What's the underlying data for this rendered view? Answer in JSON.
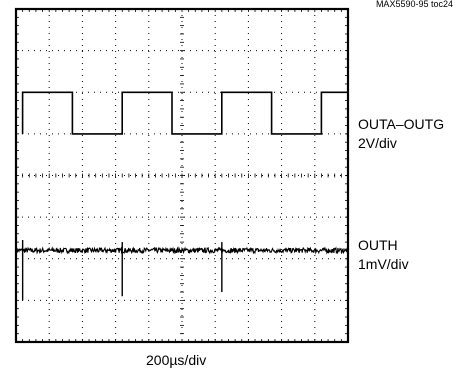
{
  "figure_id": "MAX5590-95 toc24",
  "chart_data": {
    "type": "line",
    "grid": true,
    "x_divisions": 10,
    "y_divisions": 8,
    "xlabel": "200µs/div",
    "series": [
      {
        "name": "OUTA–OUTG",
        "scale": "2V/div",
        "shape": "square",
        "period_div": 3.0,
        "duty": 0.5,
        "first_rise_div": 0.2,
        "high_level_div": 6.0,
        "low_level_div": 5.0
      },
      {
        "name": "OUTH",
        "scale": "1mV/div",
        "shape": "noise-with-spikes",
        "baseline_div": 2.2,
        "noise_amplitude_div": 0.06,
        "spikes": [
          {
            "x_div": 0.2,
            "up_div": 0.25,
            "down_div": 1.2
          },
          {
            "x_div": 3.2,
            "up_div": 0.2,
            "down_div": 1.1
          },
          {
            "x_div": 6.2,
            "up_div": 0.2,
            "down_div": 1.0
          }
        ]
      }
    ]
  },
  "labels": {
    "series1_name": "OUTA–OUTG",
    "series1_scale": "2V/div",
    "series2_name": "OUTH",
    "series2_scale": "1mV/div",
    "timebase": "200µs/div"
  }
}
